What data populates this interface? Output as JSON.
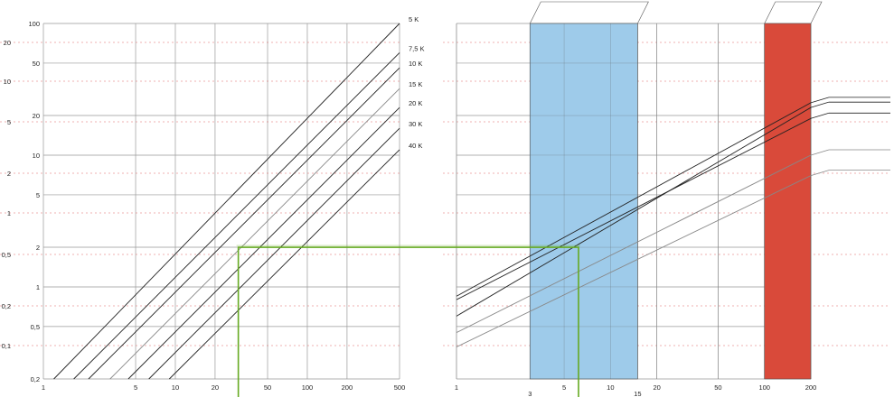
{
  "colors": {
    "grid": "#999999",
    "grid_minor_dashed": "#e06666",
    "curve": "#222222",
    "curve_light": "#888888",
    "highlight": "#66aa22",
    "band_blue": "#9ecbea",
    "band_red": "#d94a3a",
    "band_outline": "#555555"
  },
  "chart_data": [
    {
      "type": "line",
      "scale": "log-log",
      "x_ticks": [
        "1",
        "5",
        "10",
        "20",
        "50",
        "100",
        "200",
        "500"
      ],
      "x_tick_values": [
        1,
        5,
        10,
        20,
        50,
        100,
        200,
        500
      ],
      "xlim": [
        1,
        500
      ],
      "y_ticks_right_col": [
        "100",
        "50",
        "20",
        "10",
        "5",
        "2",
        "1",
        "0,5",
        "0,2"
      ],
      "y_tick_values": [
        100,
        50,
        20,
        10,
        5,
        2,
        1,
        0.5,
        0.2
      ],
      "y_ticks_left_col": [
        "20",
        "10",
        "5",
        "2",
        "1",
        "0,5",
        "0,2",
        "0,1"
      ],
      "y_ticks_left_values": [
        20,
        10,
        5,
        2,
        1,
        0.5,
        0.2,
        0.1
      ],
      "ylim": [
        0.2,
        100
      ],
      "grid": true,
      "series": [
        {
          "name": "5 K",
          "x": [
            1.2,
            500
          ],
          "y": [
            0.2,
            100
          ]
        },
        {
          "name": "7,5 K",
          "x": [
            1.7,
            500
          ],
          "y": [
            0.2,
            60
          ]
        },
        {
          "name": "10 K",
          "x": [
            2.2,
            500
          ],
          "y": [
            0.2,
            46
          ]
        },
        {
          "name": "15 K",
          "x": [
            3.2,
            500
          ],
          "y": [
            0.2,
            32
          ]
        },
        {
          "name": "20 K",
          "x": [
            4.4,
            500
          ],
          "y": [
            0.2,
            23
          ]
        },
        {
          "name": "30 K",
          "x": [
            6.3,
            500
          ],
          "y": [
            0.2,
            16
          ]
        },
        {
          "name": "40 K",
          "x": [
            9,
            500
          ],
          "y": [
            0.2,
            11
          ]
        }
      ],
      "highlight_point": {
        "x": 30,
        "y": 2
      }
    },
    {
      "type": "line",
      "scale": "log-log",
      "x_ticks": [
        "1",
        "3",
        "5",
        "10",
        "15",
        "20",
        "50",
        "100",
        "200"
      ],
      "x_tick_values": [
        1,
        3,
        5,
        10,
        15,
        20,
        50,
        100,
        200
      ],
      "xlim": [
        1,
        200
      ],
      "ylim": [
        0.2,
        100
      ],
      "grid": true,
      "bands": [
        {
          "x_from": 3,
          "x_to": 15,
          "color": "blue"
        },
        {
          "x_from": 100,
          "x_to": 200,
          "color": "red"
        }
      ],
      "series": [
        {
          "x": [
            1,
            200
          ],
          "y": [
            0.85,
            25
          ]
        },
        {
          "x": [
            1,
            200
          ],
          "y": [
            0.8,
            19
          ]
        },
        {
          "x": [
            1,
            200
          ],
          "y": [
            0.6,
            23
          ]
        },
        {
          "x": [
            1,
            200
          ],
          "y": [
            0.45,
            10
          ]
        },
        {
          "x": [
            1,
            200
          ],
          "y": [
            0.35,
            7
          ]
        }
      ],
      "highlight_point": {
        "x": 6.2,
        "y": 2
      }
    }
  ]
}
